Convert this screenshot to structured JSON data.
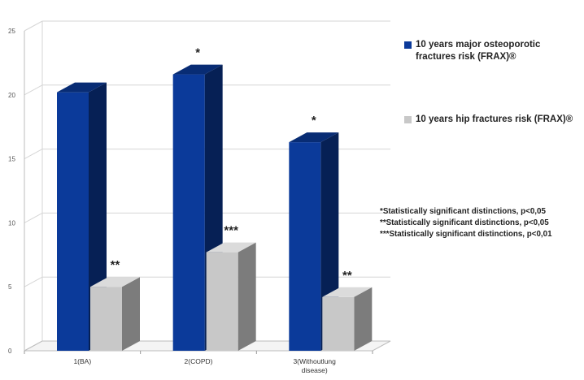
{
  "chart_data": {
    "type": "bar",
    "categories": [
      "1(BA)",
      "2(COPD)",
      "3(Withoutlung disease)"
    ],
    "series": [
      {
        "name": "10 years major osteoporotic fractures risk (FRAX)®",
        "color": "#0b3a9a",
        "values": [
          20.2,
          21.6,
          16.3
        ],
        "annotations": [
          "",
          "*",
          "*"
        ]
      },
      {
        "name": "10 years hip fractures risk (FRAX)®",
        "color": "#c8c8c8",
        "values": [
          5.0,
          7.7,
          4.2
        ],
        "annotations": [
          "**",
          "***",
          "**"
        ]
      }
    ],
    "ylim": [
      0,
      25
    ],
    "yticks": [
      0,
      5,
      10,
      15,
      20,
      25
    ],
    "ytick_labels": [
      "0",
      "5",
      "10",
      "15",
      "20",
      "25"
    ],
    "grid": true,
    "legend": "right",
    "notes": [
      "*Statistically significant distinctions, p<0,05",
      "**Statistically significant distinctions, p<0,05",
      "***Statistically significant distinctions, p<0,01"
    ]
  }
}
